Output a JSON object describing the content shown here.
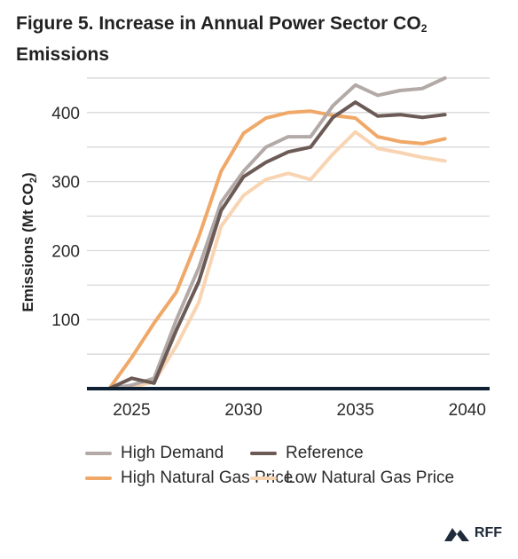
{
  "title_main": "Figure 5. Increase in Annual Power Sector CO",
  "title_sub": "2",
  "title_end": "Emissions",
  "brand": {
    "text": "RFF",
    "icon": "mountain-logo-icon"
  },
  "chart_data": {
    "type": "line",
    "x": [
      2024,
      2025,
      2026,
      2027,
      2028,
      2029,
      2030,
      2031,
      2032,
      2033,
      2034,
      2035,
      2036,
      2037,
      2038,
      2039,
      2040
    ],
    "series": [
      {
        "name": "High Demand",
        "color": "#b3aaa7",
        "values": [
          0,
          5,
          15,
          100,
          175,
          270,
          315,
          350,
          365,
          365,
          410,
          440,
          425,
          432,
          435,
          450,
          null
        ]
      },
      {
        "name": "Reference",
        "color": "#6b5a55",
        "values": [
          0,
          15,
          8,
          85,
          155,
          258,
          307,
          328,
          343,
          350,
          393,
          415,
          395,
          397,
          393,
          397,
          null
        ]
      },
      {
        "name": "High Natural Gas Price",
        "color": "#f0a868",
        "values": [
          0,
          45,
          95,
          140,
          220,
          315,
          370,
          392,
          400,
          402,
          396,
          392,
          365,
          358,
          355,
          362,
          null
        ]
      },
      {
        "name": "Low Natural Gas Price",
        "color": "#f8d4b2",
        "values": [
          0,
          2,
          10,
          62,
          125,
          235,
          280,
          303,
          312,
          303,
          340,
          372,
          348,
          342,
          335,
          330,
          null
        ]
      }
    ],
    "x_range": [
      2023,
      2041
    ],
    "xticks": [
      {
        "value": 2025,
        "label": "2025"
      },
      {
        "value": 2030,
        "label": "2030"
      },
      {
        "value": 2035,
        "label": "2035"
      },
      {
        "value": 2040,
        "label": "2040"
      }
    ],
    "ylim": [
      0,
      450
    ],
    "yticks": [
      {
        "value": 100,
        "label": "100"
      },
      {
        "value": 200,
        "label": "200"
      },
      {
        "value": 300,
        "label": "300"
      },
      {
        "value": 400,
        "label": "400"
      }
    ],
    "ylabel_main": "Emissions (Mt CO",
    "ylabel_sub": "2",
    "ylabel_end": ")",
    "grid": true,
    "legend_position": "bottom"
  }
}
